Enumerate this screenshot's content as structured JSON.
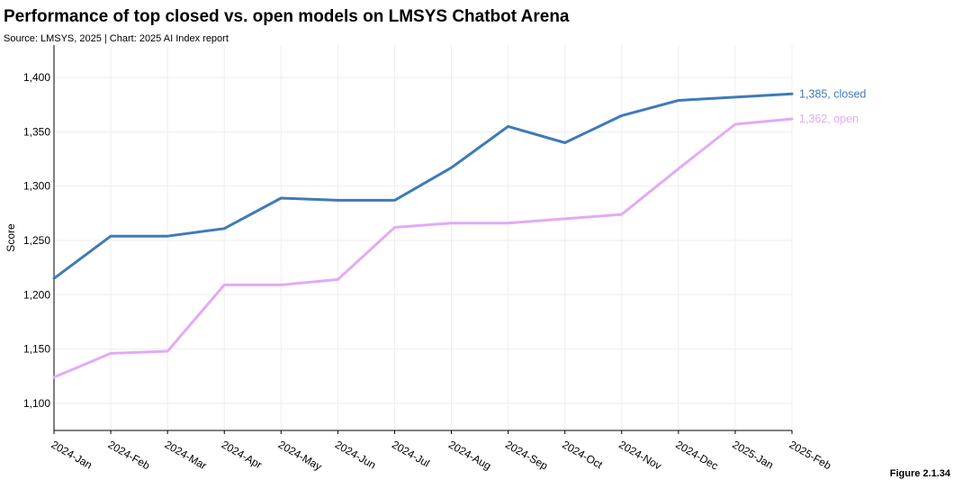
{
  "header": {
    "title": "Performance of top closed vs. open models on LMSYS Chatbot Arena",
    "source": "Source: LMSYS, 2025 | Chart: 2025 AI Index report"
  },
  "footer": {
    "figure": "Figure 2.1.34"
  },
  "chart_data": {
    "type": "line",
    "ylabel": "Score",
    "xlabel": "",
    "ylim": [
      1075,
      1430
    ],
    "yticks": [
      1100,
      1150,
      1200,
      1250,
      1300,
      1350,
      1400
    ],
    "ytick_labels": [
      "1,100",
      "1,150",
      "1,200",
      "1,250",
      "1,300",
      "1,350",
      "1,400"
    ],
    "grid": true,
    "categories": [
      "2024-Jan",
      "2024-Feb",
      "2024-Mar",
      "2024-Apr",
      "2024-May",
      "2024-Jun",
      "2024-Jul",
      "2024-Aug",
      "2024-Sep",
      "2024-Oct",
      "2024-Nov",
      "2024-Dec",
      "2025-Jan",
      "2025-Feb"
    ],
    "series": [
      {
        "name": "closed",
        "color": "#3f7ab8",
        "values": [
          1215,
          1254,
          1254,
          1261,
          1289,
          1287,
          1287,
          1317,
          1355,
          1340,
          1365,
          1379,
          1382,
          1385
        ],
        "end_label": "1,385, closed"
      },
      {
        "name": "open",
        "color": "#e3aaf5",
        "values": [
          1124,
          1146,
          1148,
          1209,
          1209,
          1214,
          1262,
          1266,
          1266,
          1270,
          1274,
          1316,
          1357,
          1362
        ],
        "end_label": "1,362, open"
      }
    ]
  }
}
